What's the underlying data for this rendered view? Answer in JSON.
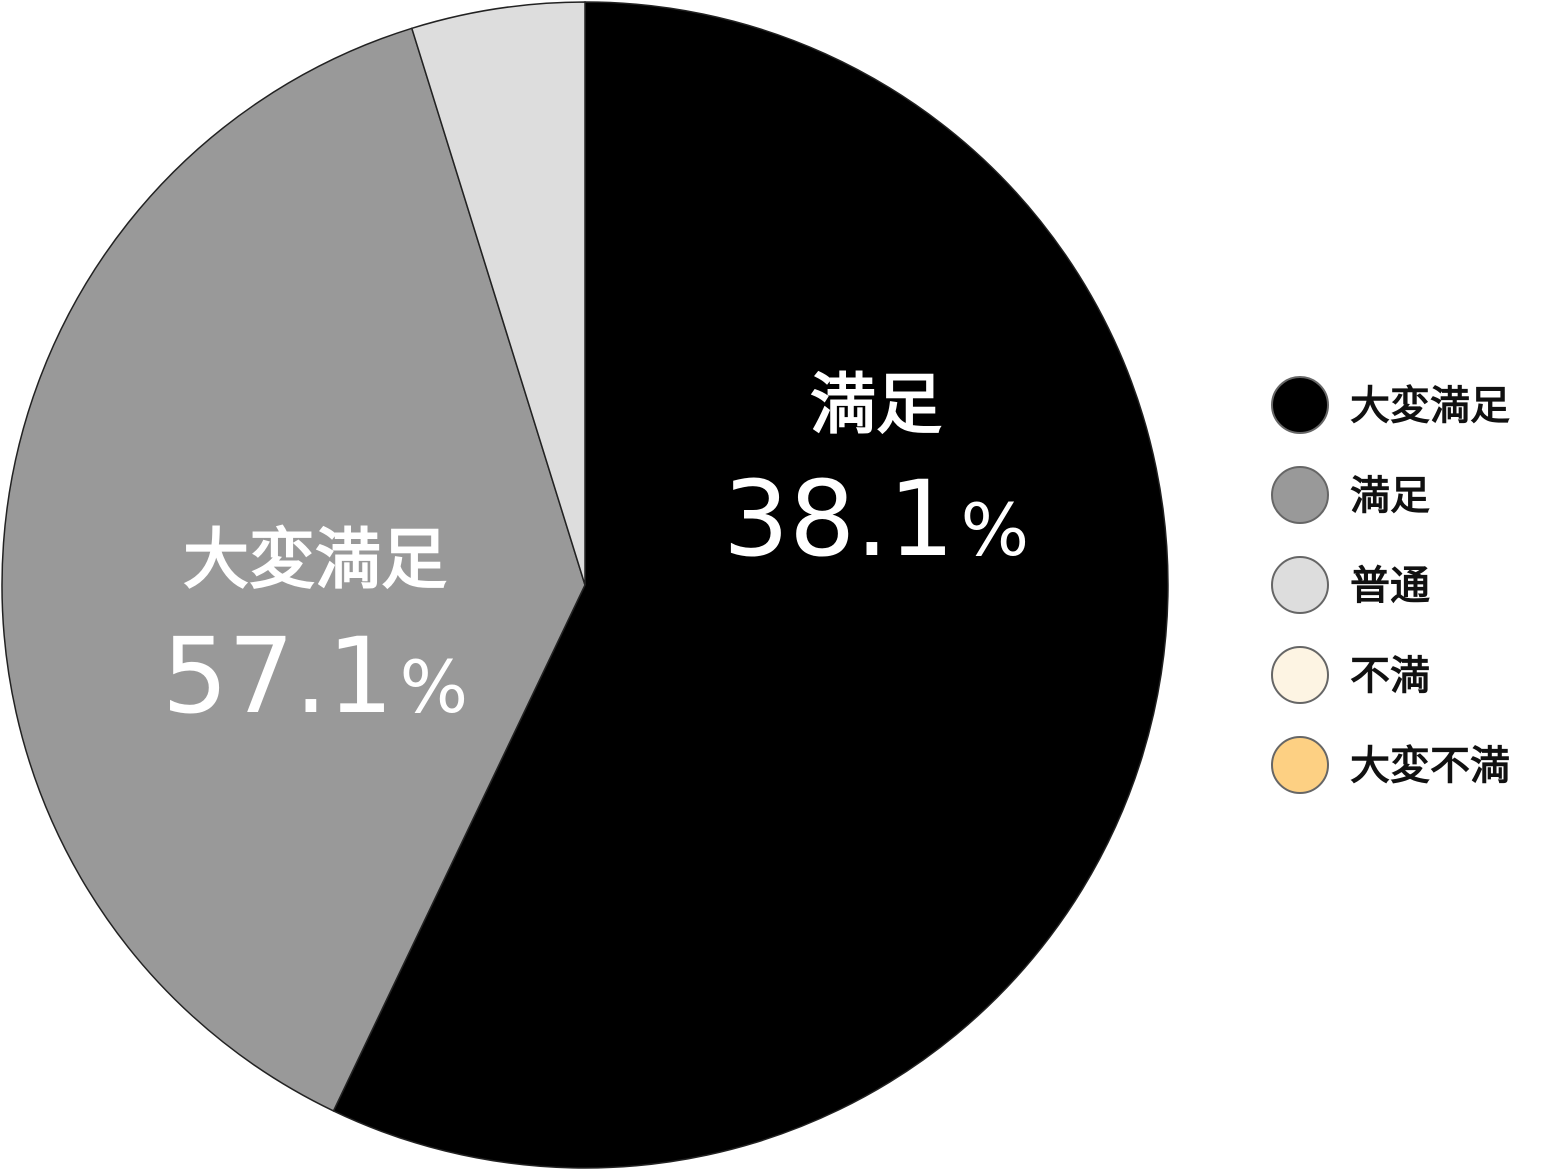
{
  "chart_data": {
    "type": "pie",
    "title": "",
    "categories": [
      "大変満足",
      "満足",
      "普通",
      "不満",
      "大変不満"
    ],
    "values": [
      57.1,
      38.1,
      4.8,
      0,
      0
    ],
    "colors": [
      "#000000",
      "#999999",
      "#dddddd",
      "#fdf4e3",
      "#fdd083"
    ],
    "data_labels": [
      {
        "category": "大変満足",
        "value": "57.1",
        "unit": "%"
      },
      {
        "category": "満足",
        "value": "38.1",
        "unit": "%"
      }
    ],
    "legend": {
      "placement": "right",
      "items": [
        "大変満足",
        "満足",
        "普通",
        "不満",
        "大変不満"
      ]
    }
  }
}
